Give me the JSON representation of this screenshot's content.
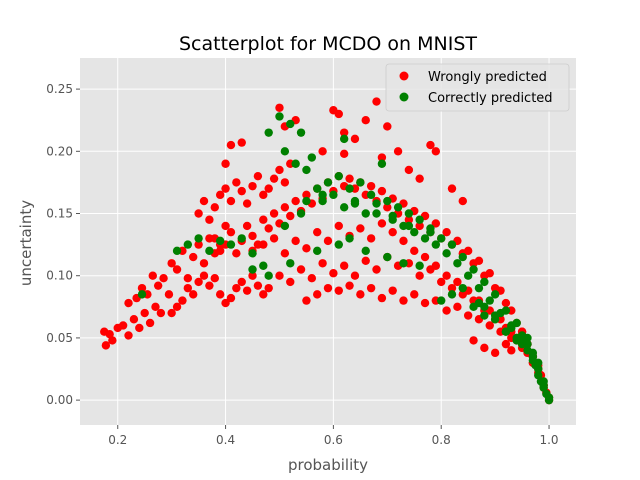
{
  "chart_data": {
    "type": "scatter",
    "title": "Scatterplot for MCDO on MNIST",
    "xlabel": "probability",
    "ylabel": "uncertainty",
    "xlim": [
      0.13,
      1.05
    ],
    "ylim": [
      -0.02,
      0.275
    ],
    "xticks": [
      "0.2",
      "0.4",
      "0.6",
      "0.8",
      "1.0"
    ],
    "xtick_values": [
      0.2,
      0.4,
      0.6,
      0.8,
      1.0
    ],
    "yticks": [
      "0.00",
      "0.05",
      "0.10",
      "0.15",
      "0.20",
      "0.25"
    ],
    "ytick_values": [
      0.0,
      0.05,
      0.1,
      0.15,
      0.2,
      0.25
    ],
    "grid": true,
    "legend_position": "top-right",
    "colors": {
      "background": "#e5e5e5",
      "grid": "#ffffff",
      "wrong": "#ff0000",
      "correct": "#008000"
    },
    "series": [
      {
        "name": "Wrongly predicted",
        "color": "#ff0000",
        "x": [
          0.175,
          0.178,
          0.185,
          0.19,
          0.2,
          0.21,
          0.22,
          0.23,
          0.24,
          0.25,
          0.26,
          0.27,
          0.28,
          0.22,
          0.235,
          0.245,
          0.255,
          0.265,
          0.275,
          0.285,
          0.295,
          0.3,
          0.31,
          0.32,
          0.33,
          0.34,
          0.35,
          0.36,
          0.37,
          0.38,
          0.39,
          0.4,
          0.3,
          0.31,
          0.32,
          0.33,
          0.34,
          0.35,
          0.36,
          0.37,
          0.38,
          0.39,
          0.4,
          0.41,
          0.42,
          0.43,
          0.44,
          0.45,
          0.46,
          0.47,
          0.48,
          0.35,
          0.36,
          0.37,
          0.38,
          0.39,
          0.4,
          0.41,
          0.42,
          0.43,
          0.44,
          0.45,
          0.46,
          0.47,
          0.48,
          0.49,
          0.5,
          0.51,
          0.52,
          0.38,
          0.39,
          0.4,
          0.41,
          0.42,
          0.43,
          0.44,
          0.45,
          0.46,
          0.47,
          0.48,
          0.49,
          0.5,
          0.51,
          0.52,
          0.53,
          0.54,
          0.55,
          0.56,
          0.57,
          0.58,
          0.59,
          0.6,
          0.61,
          0.62,
          0.63,
          0.64,
          0.65,
          0.66,
          0.67,
          0.68,
          0.69,
          0.7,
          0.71,
          0.72,
          0.73,
          0.74,
          0.75,
          0.76,
          0.77,
          0.78,
          0.79,
          0.8,
          0.81,
          0.82,
          0.83,
          0.84,
          0.85,
          0.86,
          0.87,
          0.88,
          0.89,
          0.9,
          0.91,
          0.92,
          0.93,
          0.94,
          0.95,
          0.96,
          0.97,
          0.98,
          0.99,
          1.0,
          0.45,
          0.47,
          0.49,
          0.51,
          0.53,
          0.55,
          0.57,
          0.59,
          0.61,
          0.63,
          0.65,
          0.67,
          0.69,
          0.71,
          0.73,
          0.75,
          0.77,
          0.79,
          0.81,
          0.83,
          0.85,
          0.87,
          0.89,
          0.91,
          0.93,
          0.95,
          0.97,
          0.99,
          0.5,
          0.52,
          0.54,
          0.56,
          0.58,
          0.6,
          0.62,
          0.64,
          0.66,
          0.68,
          0.7,
          0.72,
          0.74,
          0.76,
          0.78,
          0.8,
          0.82,
          0.84,
          0.86,
          0.88,
          0.9,
          0.92,
          0.94,
          0.96,
          0.98,
          0.55,
          0.57,
          0.59,
          0.61,
          0.63,
          0.65,
          0.67,
          0.69,
          0.71,
          0.73,
          0.75,
          0.77,
          0.79,
          0.81,
          0.83,
          0.85,
          0.87,
          0.89,
          0.91,
          0.93,
          0.95,
          0.97,
          0.5,
          0.51,
          0.53,
          0.6,
          0.61,
          0.62,
          0.68,
          0.7,
          0.72,
          0.4,
          0.41,
          0.43,
          0.66,
          0.78,
          0.79,
          0.62,
          0.64,
          0.58,
          0.69,
          0.74,
          0.76,
          0.82,
          0.84,
          0.95,
          0.96,
          0.97,
          0.98,
          0.985,
          0.99,
          0.995,
          1.0,
          0.93,
          0.94,
          0.92,
          0.9,
          0.88,
          0.86
        ],
        "y": [
          0.055,
          0.044,
          0.053,
          0.048,
          0.058,
          0.06,
          0.052,
          0.065,
          0.058,
          0.07,
          0.062,
          0.075,
          0.07,
          0.078,
          0.082,
          0.09,
          0.085,
          0.1,
          0.092,
          0.098,
          0.085,
          0.11,
          0.105,
          0.12,
          0.098,
          0.115,
          0.125,
          0.11,
          0.13,
          0.118,
          0.125,
          0.14,
          0.07,
          0.075,
          0.08,
          0.09,
          0.085,
          0.095,
          0.1,
          0.092,
          0.098,
          0.085,
          0.078,
          0.082,
          0.09,
          0.095,
          0.088,
          0.1,
          0.092,
          0.085,
          0.09,
          0.15,
          0.16,
          0.145,
          0.155,
          0.165,
          0.17,
          0.16,
          0.175,
          0.168,
          0.158,
          0.172,
          0.18,
          0.165,
          0.17,
          0.178,
          0.185,
          0.175,
          0.19,
          0.13,
          0.12,
          0.125,
          0.135,
          0.118,
          0.128,
          0.14,
          0.132,
          0.125,
          0.145,
          0.138,
          0.15,
          0.142,
          0.155,
          0.148,
          0.16,
          0.152,
          0.165,
          0.158,
          0.17,
          0.162,
          0.175,
          0.168,
          0.18,
          0.172,
          0.178,
          0.17,
          0.175,
          0.165,
          0.172,
          0.16,
          0.168,
          0.155,
          0.162,
          0.15,
          0.158,
          0.145,
          0.152,
          0.14,
          0.148,
          0.135,
          0.142,
          0.13,
          0.135,
          0.125,
          0.128,
          0.118,
          0.12,
          0.11,
          0.112,
          0.1,
          0.102,
          0.09,
          0.088,
          0.078,
          0.072,
          0.062,
          0.055,
          0.045,
          0.035,
          0.025,
          0.012,
          0.002,
          0.12,
          0.125,
          0.13,
          0.118,
          0.128,
          0.122,
          0.135,
          0.128,
          0.14,
          0.132,
          0.138,
          0.13,
          0.142,
          0.135,
          0.128,
          0.12,
          0.115,
          0.108,
          0.1,
          0.095,
          0.088,
          0.08,
          0.072,
          0.065,
          0.055,
          0.045,
          0.03,
          0.01,
          0.1,
          0.095,
          0.105,
          0.098,
          0.11,
          0.102,
          0.108,
          0.1,
          0.112,
          0.105,
          0.115,
          0.108,
          0.11,
          0.1,
          0.105,
          0.095,
          0.09,
          0.085,
          0.08,
          0.072,
          0.065,
          0.058,
          0.048,
          0.038,
          0.022,
          0.08,
          0.085,
          0.09,
          0.088,
          0.092,
          0.085,
          0.09,
          0.082,
          0.088,
          0.08,
          0.085,
          0.078,
          0.08,
          0.072,
          0.075,
          0.068,
          0.065,
          0.06,
          0.055,
          0.05,
          0.042,
          0.03,
          0.235,
          0.22,
          0.225,
          0.233,
          0.23,
          0.215,
          0.24,
          0.22,
          0.2,
          0.19,
          0.205,
          0.207,
          0.225,
          0.205,
          0.2,
          0.198,
          0.21,
          0.2,
          0.195,
          0.185,
          0.178,
          0.17,
          0.16,
          0.055,
          0.045,
          0.035,
          0.028,
          0.02,
          0.012,
          0.006,
          0.0,
          0.04,
          0.05,
          0.045,
          0.038,
          0.042,
          0.048
        ]
      },
      {
        "name": "Correctly predicted",
        "color": "#008000",
        "x": [
          0.245,
          0.31,
          0.33,
          0.35,
          0.37,
          0.39,
          0.41,
          0.43,
          0.45,
          0.47,
          0.48,
          0.5,
          0.51,
          0.52,
          0.53,
          0.54,
          0.55,
          0.56,
          0.57,
          0.58,
          0.59,
          0.6,
          0.61,
          0.62,
          0.63,
          0.64,
          0.65,
          0.66,
          0.67,
          0.68,
          0.69,
          0.7,
          0.71,
          0.72,
          0.73,
          0.74,
          0.75,
          0.76,
          0.77,
          0.78,
          0.79,
          0.8,
          0.81,
          0.82,
          0.83,
          0.84,
          0.85,
          0.86,
          0.87,
          0.88,
          0.89,
          0.9,
          0.91,
          0.92,
          0.93,
          0.94,
          0.95,
          0.96,
          0.97,
          0.98,
          0.99,
          1.0,
          0.8,
          0.82,
          0.84,
          0.86,
          0.88,
          0.9,
          0.92,
          0.94,
          0.95,
          0.96,
          0.97,
          0.975,
          0.98,
          0.985,
          0.99,
          0.995,
          1.0,
          0.51,
          0.54,
          0.57,
          0.61,
          0.63,
          0.66,
          0.7,
          0.73,
          0.76,
          0.55,
          0.58,
          0.62,
          0.64,
          0.68,
          0.71,
          0.74,
          0.78,
          0.45,
          0.48,
          0.52,
          0.87,
          0.93,
          0.96,
          0.98,
          0.99,
          0.92,
          0.94,
          0.95,
          0.97,
          0.88,
          0.9
        ],
        "y": [
          0.085,
          0.12,
          0.125,
          0.13,
          0.12,
          0.128,
          0.125,
          0.13,
          0.118,
          0.108,
          0.215,
          0.228,
          0.2,
          0.222,
          0.19,
          0.215,
          0.185,
          0.195,
          0.17,
          0.16,
          0.175,
          0.165,
          0.18,
          0.21,
          0.17,
          0.16,
          0.175,
          0.15,
          0.165,
          0.158,
          0.19,
          0.16,
          0.148,
          0.155,
          0.14,
          0.15,
          0.135,
          0.145,
          0.13,
          0.138,
          0.125,
          0.13,
          0.118,
          0.125,
          0.11,
          0.115,
          0.1,
          0.105,
          0.09,
          0.095,
          0.08,
          0.085,
          0.07,
          0.072,
          0.06,
          0.062,
          0.05,
          0.045,
          0.035,
          0.025,
          0.012,
          0.002,
          0.08,
          0.085,
          0.09,
          0.075,
          0.068,
          0.065,
          0.055,
          0.05,
          0.045,
          0.04,
          0.032,
          0.028,
          0.02,
          0.015,
          0.01,
          0.005,
          0.0,
          0.14,
          0.15,
          0.12,
          0.125,
          0.13,
          0.12,
          0.115,
          0.11,
          0.108,
          0.16,
          0.165,
          0.155,
          0.158,
          0.15,
          0.145,
          0.14,
          0.135,
          0.105,
          0.1,
          0.11,
          0.078,
          0.058,
          0.05,
          0.03,
          0.015,
          0.055,
          0.048,
          0.052,
          0.038,
          0.075,
          0.068
        ]
      }
    ]
  }
}
